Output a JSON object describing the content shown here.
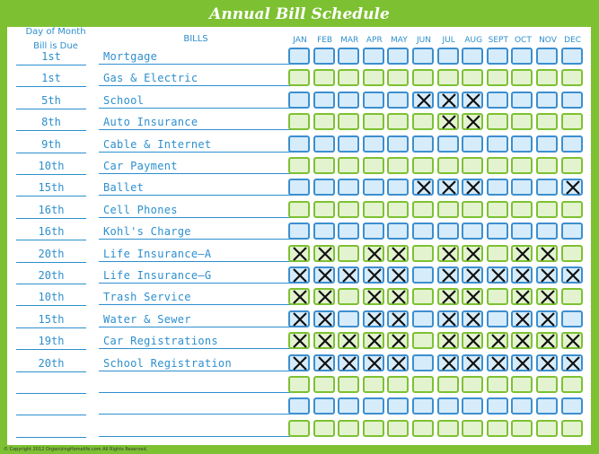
{
  "title": "Annual Bill Schedule",
  "headers": {
    "day_line1": "Day of Month",
    "day_line2": "Bill is Due",
    "bills": "BILLS",
    "months": [
      "JAN",
      "FEB",
      "MAR",
      "APR",
      "MAY",
      "JUN",
      "JUL",
      "AUG",
      "SEPT",
      "OCT",
      "NOV",
      "DEC"
    ]
  },
  "colors": {
    "green": "#7dc132",
    "blue": "#3d8fcf",
    "text": "#2d8fce"
  },
  "rows": [
    {
      "day": "1st",
      "bill": "Mortgage",
      "color": "blue",
      "checks": [
        0,
        0,
        0,
        0,
        0,
        0,
        0,
        0,
        0,
        0,
        0,
        0
      ]
    },
    {
      "day": "1st",
      "bill": "Gas & Electric",
      "color": "green",
      "checks": [
        0,
        0,
        0,
        0,
        0,
        0,
        0,
        0,
        0,
        0,
        0,
        0
      ]
    },
    {
      "day": "5th",
      "bill": "School",
      "color": "blue",
      "checks": [
        0,
        0,
        0,
        0,
        0,
        1,
        1,
        1,
        0,
        0,
        0,
        0
      ]
    },
    {
      "day": "8th",
      "bill": "Auto Insurance",
      "color": "green",
      "checks": [
        0,
        0,
        0,
        0,
        0,
        0,
        1,
        1,
        0,
        0,
        0,
        0
      ]
    },
    {
      "day": "9th",
      "bill": "Cable & Internet",
      "color": "blue",
      "checks": [
        0,
        0,
        0,
        0,
        0,
        0,
        0,
        0,
        0,
        0,
        0,
        0
      ]
    },
    {
      "day": "10th",
      "bill": "Car Payment",
      "color": "green",
      "checks": [
        0,
        0,
        0,
        0,
        0,
        0,
        0,
        0,
        0,
        0,
        0,
        0
      ]
    },
    {
      "day": "15th",
      "bill": "Ballet",
      "color": "blue",
      "checks": [
        0,
        0,
        0,
        0,
        0,
        1,
        1,
        1,
        0,
        0,
        0,
        1
      ]
    },
    {
      "day": "16th",
      "bill": "Cell Phones",
      "color": "green",
      "checks": [
        0,
        0,
        0,
        0,
        0,
        0,
        0,
        0,
        0,
        0,
        0,
        0
      ]
    },
    {
      "day": "16th",
      "bill": "Kohl's Charge",
      "color": "blue",
      "checks": [
        0,
        0,
        0,
        0,
        0,
        0,
        0,
        0,
        0,
        0,
        0,
        0
      ]
    },
    {
      "day": "20th",
      "bill": "Life Insurance—A",
      "color": "green",
      "checks": [
        1,
        1,
        0,
        1,
        1,
        0,
        1,
        1,
        0,
        1,
        1,
        0
      ]
    },
    {
      "day": "20th",
      "bill": "Life Insurance—G",
      "color": "blue",
      "checks": [
        1,
        1,
        1,
        1,
        1,
        0,
        1,
        1,
        1,
        1,
        1,
        1
      ]
    },
    {
      "day": "10th",
      "bill": "Trash Service",
      "color": "green",
      "checks": [
        1,
        1,
        0,
        1,
        1,
        0,
        1,
        1,
        0,
        1,
        1,
        0
      ]
    },
    {
      "day": "15th",
      "bill": "Water & Sewer",
      "color": "blue",
      "checks": [
        1,
        1,
        0,
        1,
        1,
        0,
        1,
        1,
        0,
        1,
        1,
        0
      ]
    },
    {
      "day": "19th",
      "bill": "Car Registrations",
      "color": "green",
      "checks": [
        1,
        1,
        1,
        1,
        1,
        0,
        1,
        1,
        1,
        1,
        1,
        1
      ]
    },
    {
      "day": "20th",
      "bill": "School Registration",
      "color": "blue",
      "checks": [
        1,
        1,
        1,
        1,
        1,
        0,
        1,
        1,
        1,
        1,
        1,
        1
      ]
    },
    {
      "day": "",
      "bill": "",
      "color": "green",
      "checks": [
        0,
        0,
        0,
        0,
        0,
        0,
        0,
        0,
        0,
        0,
        0,
        0
      ]
    },
    {
      "day": "",
      "bill": "",
      "color": "blue",
      "checks": [
        0,
        0,
        0,
        0,
        0,
        0,
        0,
        0,
        0,
        0,
        0,
        0
      ]
    },
    {
      "day": "",
      "bill": "",
      "color": "green",
      "checks": [
        0,
        0,
        0,
        0,
        0,
        0,
        0,
        0,
        0,
        0,
        0,
        0
      ]
    }
  ],
  "footer": "© Copyright 2012 OrganizingHomelife.com All Rights Reserved."
}
